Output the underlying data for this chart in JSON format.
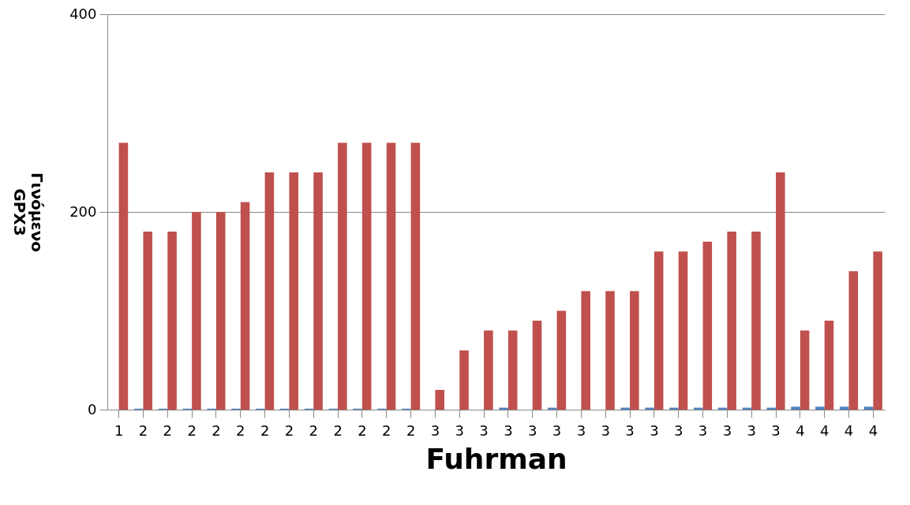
{
  "chart_data": {
    "type": "bar",
    "xlabel": "Fuhrman",
    "ylabel": "Γινόμενο GPX3",
    "categories": [
      "1",
      "2",
      "2",
      "2",
      "2",
      "2",
      "2",
      "2",
      "2",
      "2",
      "2",
      "2",
      "2",
      "3",
      "3",
      "3",
      "3",
      "3",
      "3",
      "3",
      "3",
      "3",
      "3",
      "3",
      "3",
      "3",
      "3",
      "3",
      "4",
      "4",
      "4",
      "4"
    ],
    "series": [
      {
        "color": "#4f81bd",
        "values": [
          null,
          1,
          1,
          1,
          1,
          1,
          1,
          1,
          1,
          1,
          1,
          1,
          1,
          0,
          0,
          0,
          2,
          0,
          2,
          0,
          0,
          2,
          2,
          2,
          2,
          2,
          2,
          2,
          3,
          3,
          3,
          3
        ]
      },
      {
        "color": "#c0504d",
        "values": [
          270,
          180,
          180,
          200,
          200,
          210,
          240,
          240,
          240,
          270,
          270,
          270,
          270,
          20,
          60,
          80,
          80,
          90,
          100,
          120,
          120,
          120,
          160,
          160,
          170,
          180,
          180,
          240,
          80,
          90,
          140,
          160
        ]
      }
    ],
    "ylim": [
      0,
      400
    ],
    "yticks": [
      0,
      200,
      400
    ],
    "grid": "y"
  }
}
